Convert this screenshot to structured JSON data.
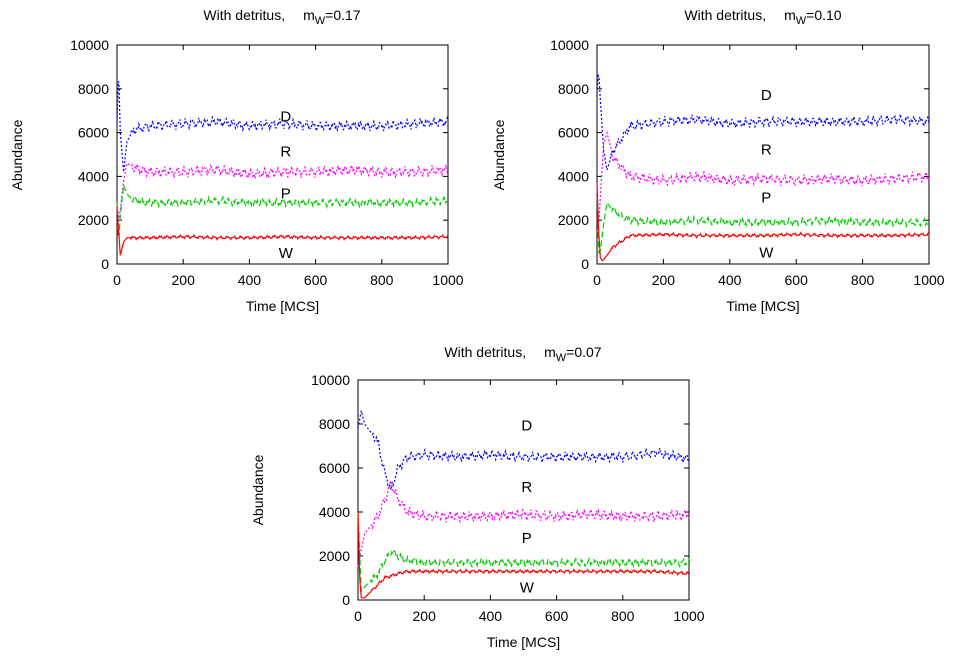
{
  "chart_data": [
    {
      "type": "line",
      "title": "With detritus,",
      "param_symbol": "m",
      "param_sub": "W",
      "param_value": "=0.17",
      "xlabel": "Time [MCS]",
      "ylabel": "Abundance",
      "xlim": [
        0,
        1000
      ],
      "ylim": [
        0,
        10000
      ],
      "xticks": [
        "0",
        "200",
        "400",
        "600",
        "800",
        "1000"
      ],
      "yticks": [
        "0",
        "2000",
        "4000",
        "6000",
        "8000",
        "10000"
      ],
      "grid": false,
      "series": [
        {
          "name": "D",
          "color": "#0000ff",
          "style": "dotted",
          "x": [
            0,
            5,
            10,
            20,
            30,
            50,
            100,
            200,
            300,
            400,
            500,
            600,
            700,
            800,
            900,
            1000
          ],
          "y": [
            6500,
            8800,
            6000,
            4200,
            5600,
            6100,
            6300,
            6400,
            6500,
            6300,
            6400,
            6300,
            6300,
            6300,
            6400,
            6500
          ]
        },
        {
          "name": "R",
          "color": "#ff00ff",
          "style": "dotted",
          "x": [
            0,
            5,
            10,
            20,
            30,
            50,
            100,
            200,
            300,
            400,
            500,
            600,
            700,
            800,
            900,
            1000
          ],
          "y": [
            2800,
            2000,
            2500,
            3800,
            4600,
            4400,
            4200,
            4200,
            4300,
            4100,
            4200,
            4200,
            4300,
            4200,
            4200,
            4300
          ]
        },
        {
          "name": "P",
          "color": "#00cc00",
          "style": "dashed",
          "x": [
            0,
            5,
            10,
            20,
            30,
            50,
            100,
            200,
            300,
            400,
            500,
            600,
            700,
            800,
            900,
            1000
          ],
          "y": [
            2800,
            900,
            2200,
            3600,
            3200,
            2900,
            2800,
            2800,
            2900,
            2800,
            2800,
            2800,
            2800,
            2800,
            2800,
            2900
          ]
        },
        {
          "name": "W",
          "color": "#ff0000",
          "style": "solid",
          "x": [
            0,
            5,
            10,
            15,
            20,
            30,
            50,
            100,
            200,
            300,
            400,
            500,
            600,
            700,
            800,
            900,
            1000
          ],
          "y": [
            2600,
            1500,
            400,
            700,
            1000,
            1200,
            1200,
            1200,
            1250,
            1200,
            1200,
            1250,
            1200,
            1200,
            1200,
            1200,
            1250
          ]
        }
      ]
    },
    {
      "type": "line",
      "title": "With detritus,",
      "param_symbol": "m",
      "param_sub": "W",
      "param_value": "=0.10",
      "xlabel": "Time [MCS]",
      "ylabel": "Abundance",
      "xlim": [
        0,
        1000
      ],
      "ylim": [
        0,
        10000
      ],
      "xticks": [
        "0",
        "200",
        "400",
        "600",
        "800",
        "1000"
      ],
      "yticks": [
        "0",
        "2000",
        "4000",
        "6000",
        "8000",
        "10000"
      ],
      "grid": false,
      "series": [
        {
          "name": "D",
          "color": "#0000ff",
          "style": "dotted",
          "x": [
            0,
            5,
            10,
            20,
            30,
            50,
            100,
            200,
            300,
            400,
            500,
            600,
            700,
            800,
            900,
            1000
          ],
          "y": [
            7800,
            8800,
            7500,
            5200,
            4300,
            5200,
            6300,
            6500,
            6600,
            6400,
            6500,
            6500,
            6500,
            6500,
            6600,
            6500
          ]
        },
        {
          "name": "R",
          "color": "#ff00ff",
          "style": "dotted",
          "x": [
            0,
            5,
            10,
            20,
            30,
            50,
            100,
            200,
            300,
            400,
            500,
            600,
            700,
            800,
            900,
            1000
          ],
          "y": [
            3000,
            1800,
            3000,
            5500,
            6000,
            4800,
            4000,
            3800,
            4000,
            3800,
            3900,
            3800,
            3900,
            3800,
            3900,
            4000
          ]
        },
        {
          "name": "P",
          "color": "#00cc00",
          "style": "dashed",
          "x": [
            0,
            5,
            10,
            20,
            30,
            50,
            100,
            200,
            300,
            400,
            500,
            600,
            700,
            800,
            900,
            1000
          ],
          "y": [
            3500,
            500,
            600,
            1800,
            2800,
            2400,
            2000,
            1900,
            2000,
            1900,
            1900,
            1900,
            2000,
            1900,
            1900,
            1900
          ]
        },
        {
          "name": "W",
          "color": "#ff0000",
          "style": "solid",
          "x": [
            0,
            5,
            10,
            15,
            20,
            30,
            50,
            100,
            200,
            300,
            400,
            500,
            600,
            700,
            800,
            900,
            1000
          ],
          "y": [
            3700,
            1500,
            300,
            150,
            200,
            400,
            800,
            1300,
            1350,
            1300,
            1300,
            1300,
            1350,
            1300,
            1300,
            1300,
            1350
          ]
        }
      ]
    },
    {
      "type": "line",
      "title": "With detritus,",
      "param_symbol": "m",
      "param_sub": "W",
      "param_value": "=0.07",
      "xlabel": "Time [MCS]",
      "ylabel": "Abundance",
      "xlim": [
        0,
        1000
      ],
      "ylim": [
        0,
        10000
      ],
      "xticks": [
        "0",
        "200",
        "400",
        "600",
        "800",
        "1000"
      ],
      "yticks": [
        "0",
        "2000",
        "4000",
        "6000",
        "8000",
        "10000"
      ],
      "grid": false,
      "series": [
        {
          "name": "D",
          "color": "#0000ff",
          "style": "dotted",
          "x": [
            0,
            10,
            20,
            40,
            60,
            80,
            100,
            120,
            150,
            200,
            300,
            400,
            500,
            600,
            700,
            800,
            900,
            1000
          ],
          "y": [
            7800,
            8600,
            8000,
            7600,
            7200,
            5800,
            5000,
            6000,
            6500,
            6600,
            6500,
            6600,
            6500,
            6500,
            6500,
            6500,
            6700,
            6400
          ]
        },
        {
          "name": "R",
          "color": "#ff00ff",
          "style": "dotted",
          "x": [
            0,
            10,
            20,
            40,
            60,
            80,
            100,
            120,
            150,
            200,
            300,
            400,
            500,
            600,
            700,
            800,
            900,
            1000
          ],
          "y": [
            1500,
            2300,
            3000,
            3400,
            3800,
            4500,
            5300,
            4600,
            4000,
            3800,
            3800,
            3800,
            3900,
            3800,
            3900,
            3800,
            3800,
            3900
          ]
        },
        {
          "name": "P",
          "color": "#00cc00",
          "style": "dashed",
          "x": [
            0,
            10,
            20,
            40,
            60,
            80,
            100,
            120,
            150,
            200,
            300,
            400,
            500,
            600,
            700,
            800,
            900,
            1000
          ],
          "y": [
            3900,
            400,
            600,
            900,
            1200,
            1800,
            2200,
            2000,
            1800,
            1700,
            1700,
            1700,
            1700,
            1700,
            1700,
            1700,
            1700,
            1700
          ]
        },
        {
          "name": "W",
          "color": "#ff0000",
          "style": "solid",
          "x": [
            0,
            5,
            10,
            20,
            40,
            60,
            80,
            100,
            120,
            150,
            200,
            300,
            400,
            500,
            600,
            700,
            800,
            900,
            1000
          ],
          "y": [
            4000,
            1000,
            100,
            100,
            400,
            700,
            1000,
            1100,
            1200,
            1300,
            1300,
            1300,
            1300,
            1300,
            1300,
            1300,
            1300,
            1300,
            1200
          ]
        }
      ]
    }
  ]
}
